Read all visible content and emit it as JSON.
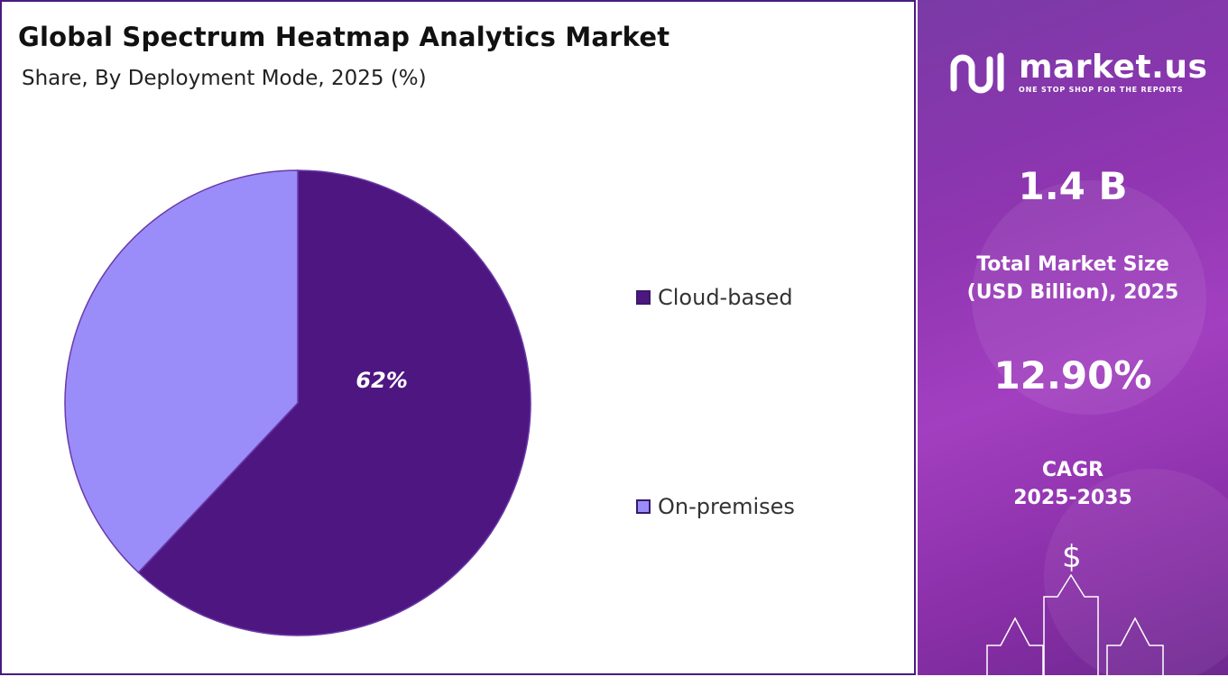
{
  "title": "Global Spectrum Heatmap Analytics Market",
  "subtitle": "Share, By Deployment Mode, 2025 (%)",
  "chart_data": {
    "type": "pie",
    "slices": [
      {
        "label": "Cloud-based",
        "value": 62,
        "color": "#4e1681",
        "data_label": "62%"
      },
      {
        "label": "On-premises",
        "value": 38,
        "color": "#9a8df9",
        "data_label": ""
      }
    ],
    "legend": [
      "Cloud-based",
      "On-premises"
    ],
    "legend_position": "right"
  },
  "sidebar": {
    "logo_name": "market.us",
    "logo_tagline": "ONE STOP SHOP FOR THE REPORTS",
    "market_size_value": "1.4 B",
    "market_size_label_1": "Total Market Size",
    "market_size_label_2": "(USD Billion), 2025",
    "cagr_value": "12.90%",
    "cagr_label_1": "CAGR",
    "cagr_label_2": "2025-2035",
    "dollar_symbol": "$"
  }
}
